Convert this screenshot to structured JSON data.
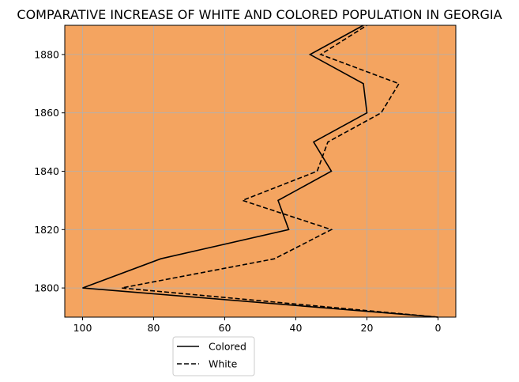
{
  "chart_data": {
    "type": "line",
    "title": "COMPARATIVE INCREASE OF WHITE AND COLORED POPULATION IN GEORGIA",
    "orientation": "horizontal-values",
    "xlabel": "",
    "ylabel": "",
    "x_axis_inverted": true,
    "xlim": [
      105,
      -5
    ],
    "ylim": [
      1790,
      1890
    ],
    "x_ticks": [
      100,
      80,
      60,
      40,
      20,
      0
    ],
    "x_tick_labels": [
      "100",
      "80",
      "60",
      "40",
      "20",
      "0"
    ],
    "y_ticks": [
      1800,
      1820,
      1840,
      1860,
      1880
    ],
    "y_tick_labels": [
      "1800",
      "1820",
      "1840",
      "1860",
      "1880"
    ],
    "grid": true,
    "plot_background": "#f4a460",
    "line_color": "#000000",
    "grid_color": "#b0b0b0",
    "legend_position": "below-left",
    "series": [
      {
        "name": "Colored",
        "style": "solid",
        "years": [
          1790,
          1800,
          1810,
          1820,
          1830,
          1840,
          1850,
          1860,
          1870,
          1880,
          1890
        ],
        "values": [
          0,
          100,
          78,
          42,
          45,
          30,
          35,
          20,
          21,
          36,
          21
        ]
      },
      {
        "name": "White",
        "style": "dashed",
        "years": [
          1790,
          1800,
          1810,
          1820,
          1830,
          1840,
          1850,
          1860,
          1870,
          1880,
          1890
        ],
        "values": [
          0,
          89,
          46,
          30,
          55,
          34,
          31,
          16,
          11,
          33,
          20
        ]
      }
    ]
  }
}
